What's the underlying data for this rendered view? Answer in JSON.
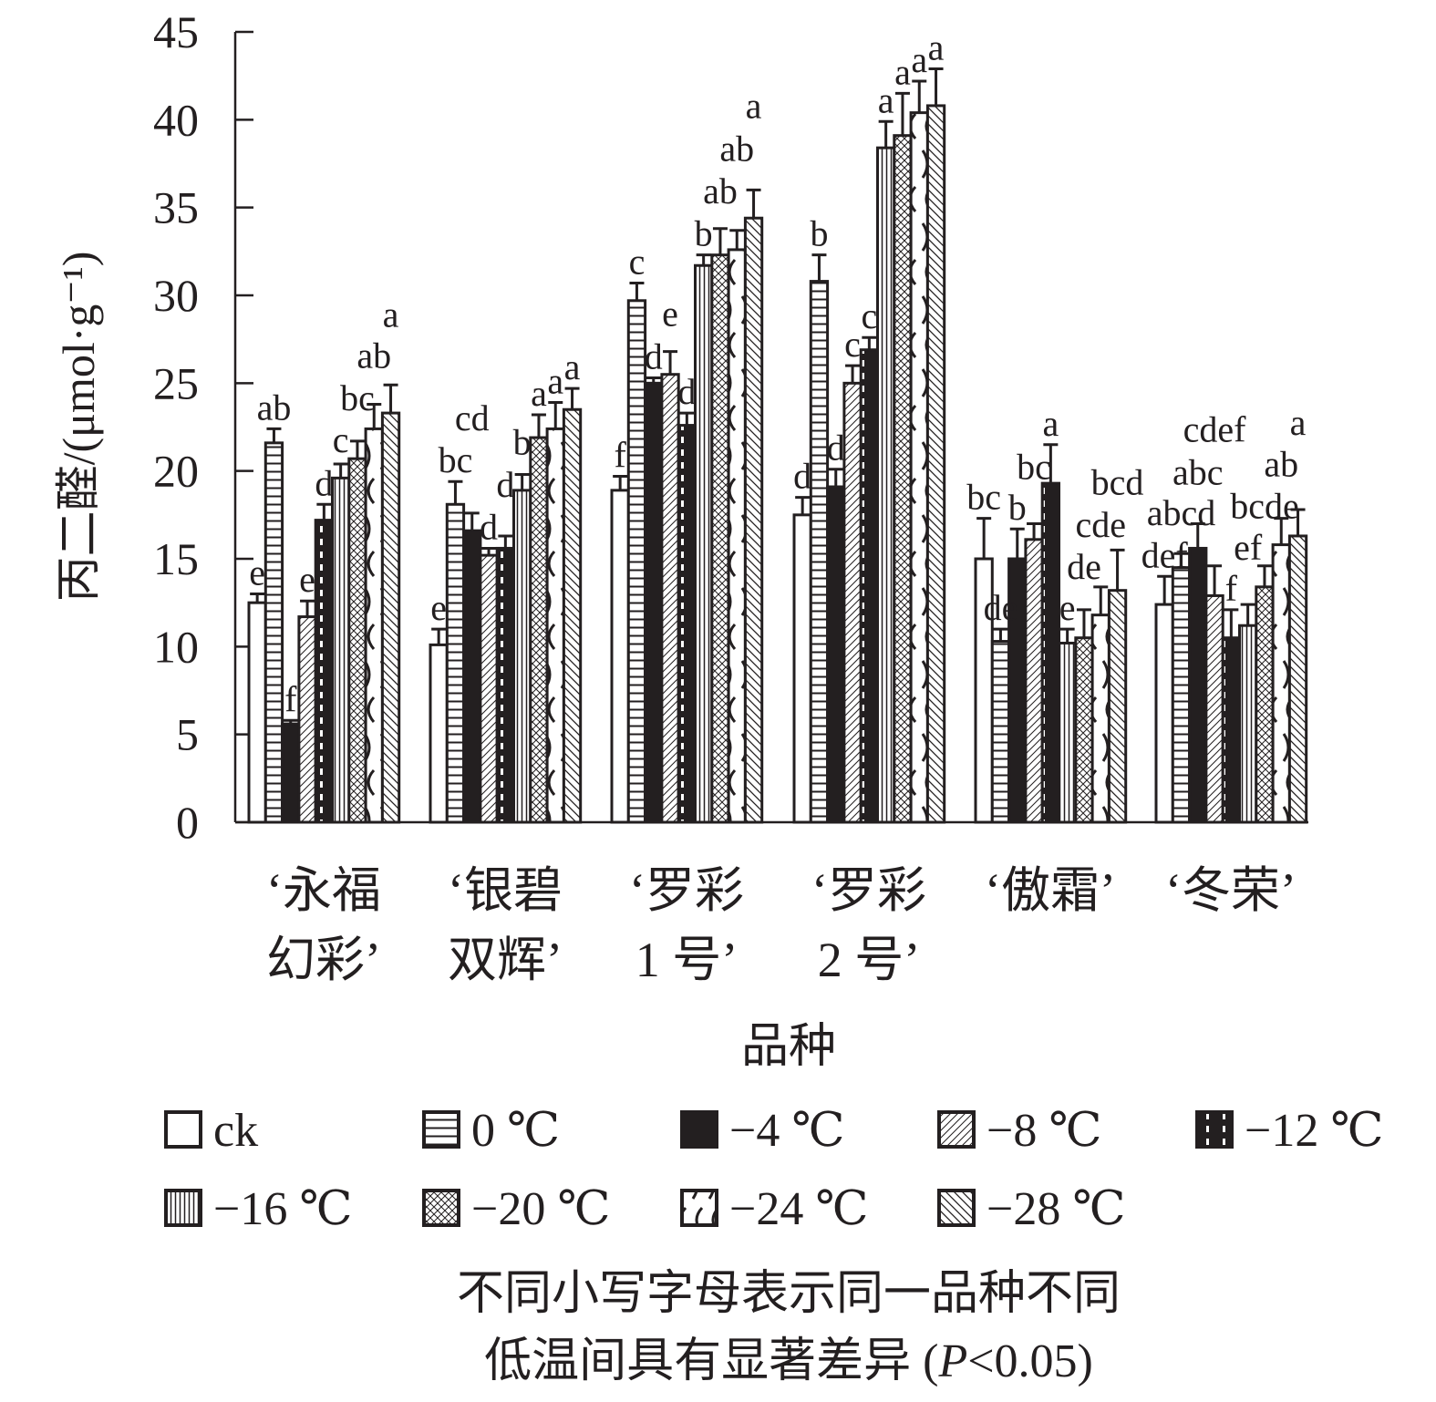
{
  "chart_data": {
    "type": "bar",
    "ylabel": "丙二醛/(μmol·g⁻¹)",
    "xlabel": "品种",
    "ylim": [
      0,
      45
    ],
    "yticks": [
      0,
      5,
      10,
      15,
      20,
      25,
      30,
      35,
      40,
      45
    ],
    "categories": [
      [
        "‘永福",
        "幻彩’"
      ],
      [
        "‘银碧",
        "双辉’"
      ],
      [
        "‘罗彩",
        "1 号’"
      ],
      [
        "‘罗彩",
        "2 号’"
      ],
      [
        "‘傲霜’"
      ],
      [
        "‘冬荣’"
      ]
    ],
    "series": [
      {
        "name": "ck",
        "pattern": "empty",
        "values": [
          12.5,
          10.1,
          18.9,
          17.5,
          15.0,
          12.4
        ],
        "errors": [
          0.5,
          0.9,
          0.8,
          1.0,
          2.3,
          1.6
        ],
        "letters": [
          "e",
          "e",
          "f",
          "d",
          "bc",
          "def"
        ]
      },
      {
        "name": "0 ℃",
        "pattern": "hlines",
        "values": [
          21.6,
          18.1,
          29.7,
          30.8,
          10.3,
          14.5
        ],
        "errors": [
          0.8,
          1.3,
          1.0,
          1.5,
          0.7,
          0.8
        ],
        "letters": [
          "ab",
          "bc",
          "c",
          "b",
          "de",
          "abcd"
        ]
      },
      {
        "name": "−4 ℃",
        "pattern": "solid",
        "values": [
          5.6,
          16.6,
          25.0,
          19.1,
          15.0,
          15.6
        ],
        "errors": [
          0.2,
          1.0,
          0.3,
          1.0,
          1.7,
          1.4
        ],
        "letters": [
          "f",
          "cd",
          "d",
          "d",
          "b",
          "abc"
        ]
      },
      {
        "name": "−8 ℃",
        "pattern": "diag",
        "values": [
          11.7,
          15.2,
          25.5,
          25.0,
          16.1,
          12.9
        ],
        "errors": [
          0.9,
          0.4,
          1.3,
          1.0,
          0.9,
          1.7
        ],
        "letters": [
          "e",
          "d",
          "e",
          "c",
          "bc",
          "cdef"
        ]
      },
      {
        "name": "−12 ℃",
        "pattern": "grid",
        "values": [
          17.2,
          15.6,
          22.6,
          26.9,
          19.3,
          10.5
        ],
        "errors": [
          0.9,
          0.7,
          0.7,
          0.7,
          2.2,
          1.6
        ],
        "letters": [
          "d",
          "d",
          "d",
          "c",
          "a",
          "f"
        ]
      },
      {
        "name": "−16 ℃",
        "pattern": "vlines",
        "values": [
          19.6,
          18.9,
          31.7,
          38.4,
          10.2,
          11.2
        ],
        "errors": [
          0.8,
          0.9,
          0.6,
          1.5,
          0.8,
          1.2
        ],
        "letters": [
          "c",
          "b",
          "b",
          "a",
          "e",
          "ef"
        ]
      },
      {
        "name": "−20 ℃",
        "pattern": "cross",
        "values": [
          20.7,
          21.9,
          32.3,
          39.1,
          10.5,
          13.4
        ],
        "errors": [
          1.0,
          1.3,
          1.5,
          2.4,
          1.6,
          1.2
        ],
        "letters": [
          "bc",
          "a",
          "ab",
          "a",
          "de",
          "bcde"
        ]
      },
      {
        "name": "−24 ℃",
        "pattern": "wave",
        "values": [
          22.4,
          22.4,
          32.6,
          40.4,
          11.8,
          15.8
        ],
        "errors": [
          1.4,
          1.5,
          1.1,
          1.8,
          1.6,
          1.5
        ],
        "letters": [
          "ab",
          "a",
          "ab",
          "a",
          "cde",
          "ab"
        ]
      },
      {
        "name": "−28 ℃",
        "pattern": "backdiag",
        "values": [
          23.3,
          23.5,
          34.4,
          40.8,
          13.2,
          16.3
        ],
        "errors": [
          1.6,
          1.2,
          1.6,
          2.1,
          2.3,
          1.5
        ],
        "letters": [
          "a",
          "a",
          "a",
          "a",
          "bcd",
          "a"
        ]
      }
    ],
    "note": [
      "不同小写字母表示同一品种不同",
      "低温间具有显著差异 (",
      "P",
      "<0.05)"
    ]
  }
}
